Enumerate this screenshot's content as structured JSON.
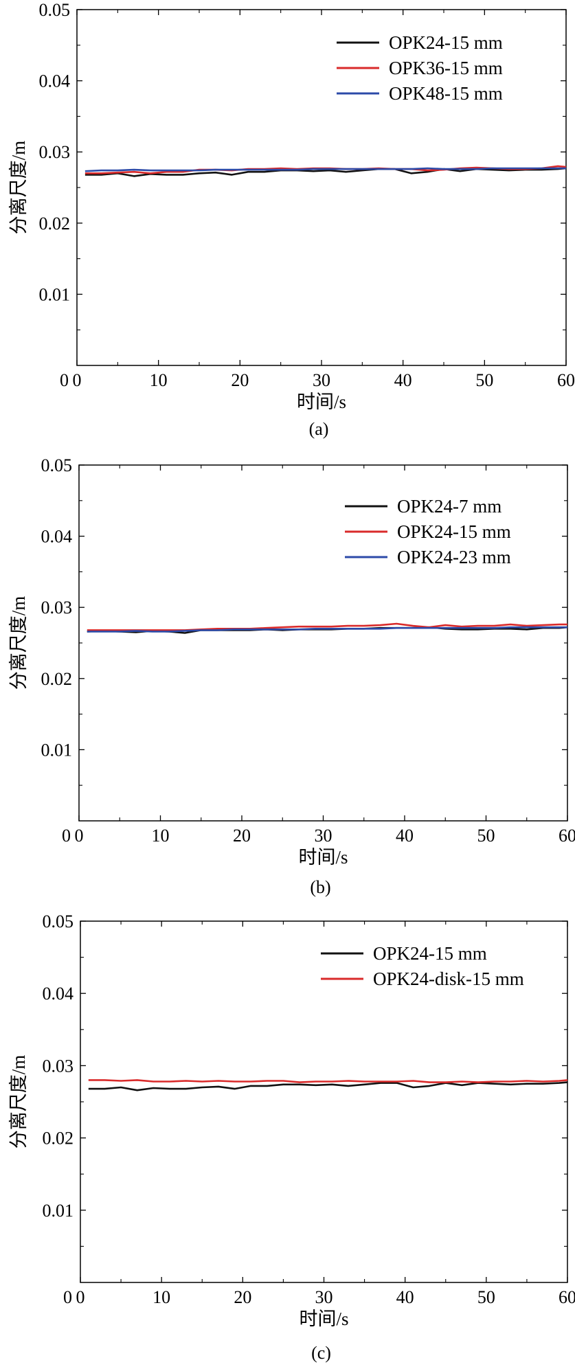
{
  "colors": {
    "black": "#111111",
    "red": "#d92a2a",
    "blue": "#2c4aa8",
    "axis": "#000000"
  },
  "chart_data": [
    {
      "type": "line",
      "caption": "(a)",
      "xlabel": "时间/s",
      "ylabel": "分离尺度/m",
      "xlim": [
        0,
        60
      ],
      "ylim": [
        0,
        0.05
      ],
      "x_ticks": [
        0,
        10,
        20,
        30,
        40,
        50,
        60
      ],
      "x_tick_labels": [
        "0",
        "10",
        "20",
        "30",
        "40",
        "50",
        "60"
      ],
      "y_ticks": [
        0.01,
        0.02,
        0.03,
        0.04,
        0.05
      ],
      "y_tick_labels": [
        "0.01",
        "0.02",
        "0.03",
        "0.04",
        "0.05"
      ],
      "legend_position": "top-right",
      "x": [
        1,
        3,
        5,
        7,
        9,
        11,
        13,
        15,
        17,
        19,
        21,
        23,
        25,
        27,
        29,
        31,
        33,
        35,
        37,
        39,
        41,
        43,
        45,
        47,
        49,
        51,
        53,
        55,
        57,
        59,
        60
      ],
      "series": [
        {
          "name": "OPK24-15 mm",
          "color": "black",
          "values": [
            0.0268,
            0.0268,
            0.027,
            0.0266,
            0.0269,
            0.0268,
            0.0268,
            0.027,
            0.0271,
            0.0268,
            0.0272,
            0.0272,
            0.0274,
            0.0274,
            0.0273,
            0.0274,
            0.0272,
            0.0274,
            0.0276,
            0.0276,
            0.027,
            0.0272,
            0.0276,
            0.0273,
            0.0276,
            0.0275,
            0.0274,
            0.0275,
            0.0275,
            0.0276,
            0.0277
          ]
        },
        {
          "name": "OPK36-15 mm",
          "color": "red",
          "values": [
            0.027,
            0.027,
            0.0271,
            0.0272,
            0.027,
            0.0272,
            0.0272,
            0.0275,
            0.0275,
            0.0274,
            0.0276,
            0.0276,
            0.0277,
            0.0276,
            0.0277,
            0.0277,
            0.0276,
            0.0276,
            0.0277,
            0.0276,
            0.0276,
            0.0274,
            0.0275,
            0.0277,
            0.0278,
            0.0277,
            0.0276,
            0.0276,
            0.0277,
            0.028,
            0.0279
          ]
        },
        {
          "name": "OPK48-15 mm",
          "color": "blue",
          "values": [
            0.0273,
            0.0274,
            0.0274,
            0.0275,
            0.0274,
            0.0274,
            0.0274,
            0.0274,
            0.0275,
            0.0275,
            0.0275,
            0.0275,
            0.0275,
            0.0275,
            0.0276,
            0.0276,
            0.0276,
            0.0276,
            0.0276,
            0.0276,
            0.0276,
            0.0277,
            0.0276,
            0.0276,
            0.0276,
            0.0277,
            0.0277,
            0.0277,
            0.0277,
            0.0277,
            0.0277
          ]
        }
      ]
    },
    {
      "type": "line",
      "caption": "(b)",
      "xlabel": "时间/s",
      "ylabel": "分离尺度/m",
      "xlim": [
        0,
        60
      ],
      "ylim": [
        0,
        0.05
      ],
      "x_ticks": [
        0,
        10,
        20,
        30,
        40,
        50,
        60
      ],
      "x_tick_labels": [
        "0",
        "10",
        "20",
        "30",
        "40",
        "50",
        "60"
      ],
      "y_ticks": [
        0.01,
        0.02,
        0.03,
        0.04,
        0.05
      ],
      "y_tick_labels": [
        "0.01",
        "0.02",
        "0.03",
        "0.04",
        "0.05"
      ],
      "legend_position": "top-right",
      "x": [
        1,
        3,
        5,
        7,
        9,
        11,
        13,
        15,
        17,
        19,
        21,
        23,
        25,
        27,
        29,
        31,
        33,
        35,
        37,
        39,
        41,
        43,
        45,
        47,
        49,
        51,
        53,
        55,
        57,
        59,
        60
      ],
      "series": [
        {
          "name": "OPK24-7 mm",
          "color": "black",
          "values": [
            0.0266,
            0.0267,
            0.0266,
            0.0265,
            0.0267,
            0.0266,
            0.0264,
            0.0268,
            0.0268,
            0.0268,
            0.0268,
            0.0269,
            0.0268,
            0.0269,
            0.0269,
            0.0269,
            0.027,
            0.027,
            0.0271,
            0.0271,
            0.0271,
            0.0272,
            0.027,
            0.0269,
            0.0269,
            0.027,
            0.027,
            0.0269,
            0.0271,
            0.0271,
            0.0272
          ]
        },
        {
          "name": "OPK24-15 mm",
          "color": "red",
          "values": [
            0.0268,
            0.0268,
            0.0268,
            0.0268,
            0.0268,
            0.0268,
            0.0268,
            0.0269,
            0.027,
            0.027,
            0.027,
            0.0271,
            0.0272,
            0.0273,
            0.0273,
            0.0273,
            0.0274,
            0.0274,
            0.0275,
            0.0277,
            0.0274,
            0.0272,
            0.0275,
            0.0273,
            0.0274,
            0.0274,
            0.0276,
            0.0274,
            0.0275,
            0.0276,
            0.0276
          ]
        },
        {
          "name": "OPK24-23 mm",
          "color": "blue",
          "values": [
            0.0266,
            0.0266,
            0.0266,
            0.0267,
            0.0266,
            0.0266,
            0.0267,
            0.0268,
            0.0268,
            0.0269,
            0.0269,
            0.0269,
            0.0269,
            0.0269,
            0.027,
            0.027,
            0.027,
            0.027,
            0.027,
            0.0271,
            0.0271,
            0.0271,
            0.0271,
            0.0271,
            0.0271,
            0.0271,
            0.0272,
            0.0272,
            0.0272,
            0.0272,
            0.0272
          ]
        }
      ]
    },
    {
      "type": "line",
      "caption": "(c)",
      "xlabel": "时间/s",
      "ylabel": "分离尺度/m",
      "xlim": [
        0,
        60
      ],
      "ylim": [
        0,
        0.05
      ],
      "x_ticks": [
        0,
        10,
        20,
        30,
        40,
        50,
        60
      ],
      "x_tick_labels": [
        "0",
        "10",
        "20",
        "30",
        "40",
        "50",
        "60"
      ],
      "y_ticks": [
        0.01,
        0.02,
        0.03,
        0.04,
        0.05
      ],
      "y_tick_labels": [
        "0.01",
        "0.02",
        "0.03",
        "0.04",
        "0.05"
      ],
      "legend_position": "top-right",
      "x": [
        1,
        3,
        5,
        7,
        9,
        11,
        13,
        15,
        17,
        19,
        21,
        23,
        25,
        27,
        29,
        31,
        33,
        35,
        37,
        39,
        41,
        43,
        45,
        47,
        49,
        51,
        53,
        55,
        57,
        59,
        60
      ],
      "series": [
        {
          "name": "OPK24-15 mm",
          "color": "black",
          "values": [
            0.0268,
            0.0268,
            0.027,
            0.0266,
            0.0269,
            0.0268,
            0.0268,
            0.027,
            0.0271,
            0.0268,
            0.0272,
            0.0272,
            0.0274,
            0.0274,
            0.0273,
            0.0274,
            0.0272,
            0.0274,
            0.0276,
            0.0276,
            0.027,
            0.0272,
            0.0276,
            0.0273,
            0.0276,
            0.0275,
            0.0274,
            0.0275,
            0.0275,
            0.0276,
            0.0277
          ]
        },
        {
          "name": "OPK24-disk-15 mm",
          "color": "red",
          "values": [
            0.028,
            0.028,
            0.0279,
            0.028,
            0.0278,
            0.0278,
            0.0279,
            0.0278,
            0.0279,
            0.0278,
            0.0278,
            0.0279,
            0.0279,
            0.0277,
            0.0278,
            0.0278,
            0.0279,
            0.0278,
            0.0278,
            0.0278,
            0.0279,
            0.0277,
            0.0277,
            0.0278,
            0.0277,
            0.0278,
            0.0278,
            0.0279,
            0.0278,
            0.0279,
            0.028
          ]
        }
      ]
    }
  ]
}
